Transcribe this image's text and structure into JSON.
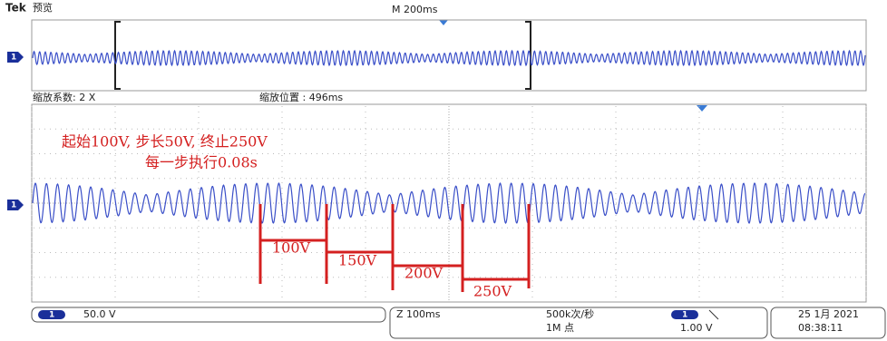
{
  "header": {
    "brand": "Tek",
    "mode": "预览",
    "timebase": "M 200ms"
  },
  "zoom": {
    "factor": "缩放系数: 2 X",
    "position": "缩放位置 : 496ms"
  },
  "annotation": {
    "line1": "起始100V, 步长50V, 终止250V",
    "line2": "每一步执行0.08s"
  },
  "steps": [
    "100V",
    "150V",
    "200V",
    "250V"
  ],
  "channel_marker": "1",
  "status": {
    "ch1_scale": "50.0 V",
    "zoom_timebase": "Z 100ms",
    "sample_rate": "500k次/秒",
    "record_length": "1M 点",
    "trigger_level": "1.00 V",
    "date": "25 1月 2021",
    "time": "08:38:11"
  }
}
